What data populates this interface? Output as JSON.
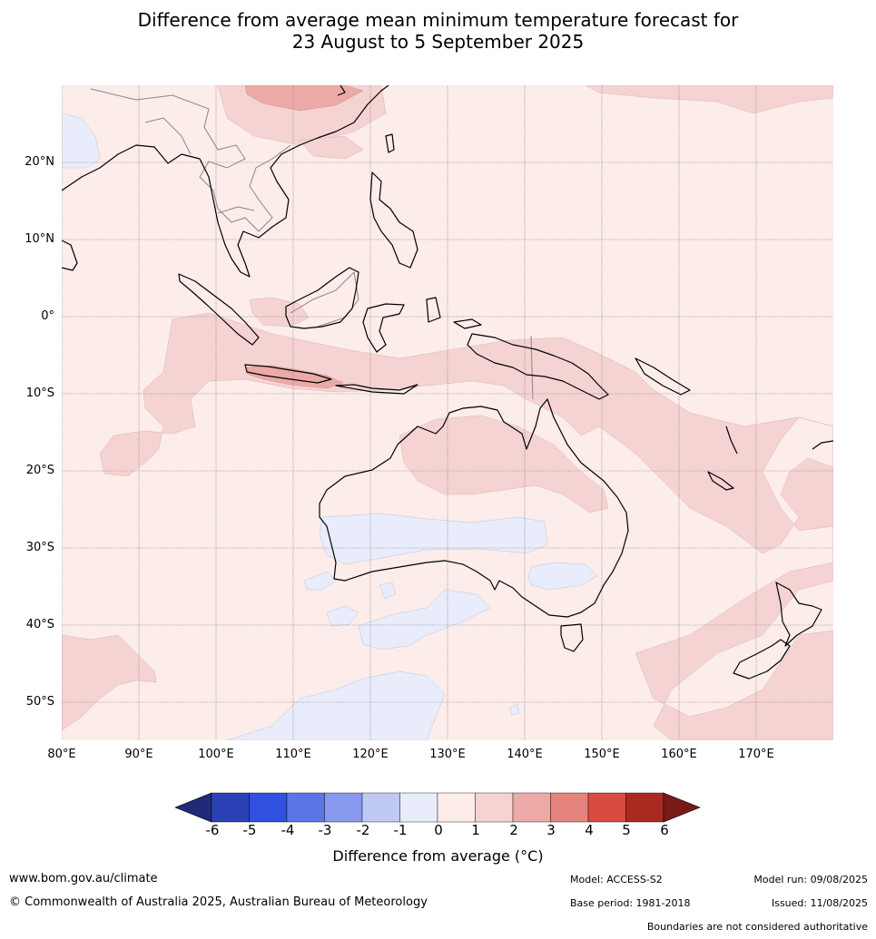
{
  "title": {
    "line1": "Difference from average mean minimum temperature forecast for",
    "line2": "23 August to 5 September 2025"
  },
  "map": {
    "lat_labels": [
      "20°N",
      "10°N",
      "0°",
      "10°S",
      "20°S",
      "30°S",
      "40°S",
      "50°S"
    ],
    "lon_labels": [
      "80°E",
      "90°E",
      "100°E",
      "110°E",
      "120°E",
      "130°E",
      "140°E",
      "150°E",
      "160°E",
      "170°E"
    ]
  },
  "colorbar": {
    "ticks": [
      "-6",
      "-5",
      "-4",
      "-3",
      "-2",
      "-1",
      "0",
      "1",
      "2",
      "3",
      "4",
      "5",
      "6"
    ],
    "colors": [
      "#1f2a7a",
      "#2a40b4",
      "#3050e0",
      "#5a75e6",
      "#8898ee",
      "#c0c8f4",
      "#e8ecfb",
      "#fcecea",
      "#f5d3d2",
      "#ecaaa7",
      "#e5837d",
      "#d94a40",
      "#aa2a22",
      "#7a1a16"
    ],
    "label": "Difference from average (°C)"
  },
  "colors": {
    "base_warm": "#fcecea",
    "warm_1_2": "#f5d3d2",
    "warm_2_3": "#ecaaa7",
    "cool": "#e8ecfb"
  },
  "footer": {
    "url": "www.bom.gov.au/climate",
    "copyright": "© Commonwealth of Australia 2025, Australian Bureau of Meteorology",
    "model": "Model: ACCESS-S2",
    "base_period": "Base period: 1981-2018",
    "model_run": "Model run: 09/08/2025",
    "issued": "Issued: 11/08/2025",
    "disclaimer": "Boundaries are not considered authoritative"
  }
}
